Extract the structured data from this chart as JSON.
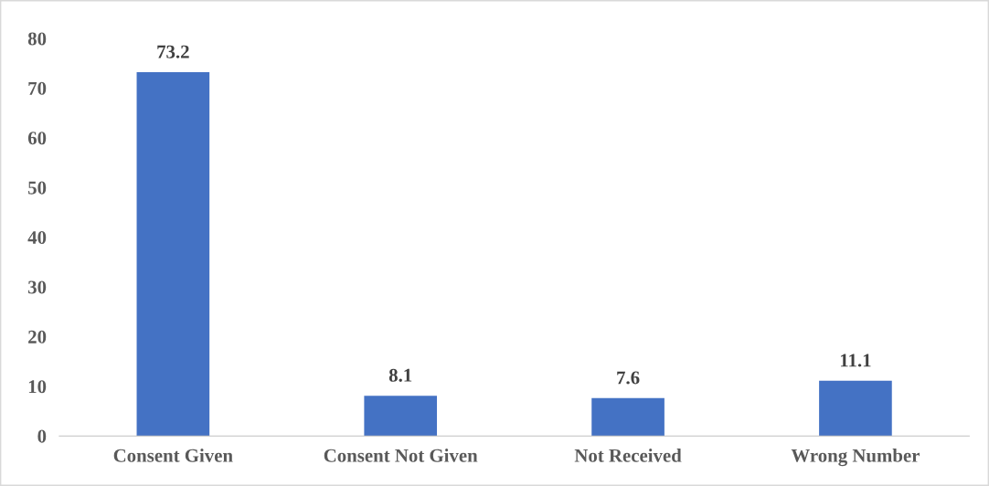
{
  "chart_data": {
    "type": "bar",
    "categories": [
      "Consent Given",
      "Consent Not Given",
      "Not Received",
      "Wrong Number"
    ],
    "values": [
      73.2,
      8.1,
      7.6,
      11.1
    ],
    "color": "#4472c4",
    "ylim": [
      0,
      80
    ],
    "yticks": [
      0,
      10,
      20,
      30,
      40,
      50,
      60,
      70,
      80
    ],
    "data_labels": true,
    "grid": false
  }
}
